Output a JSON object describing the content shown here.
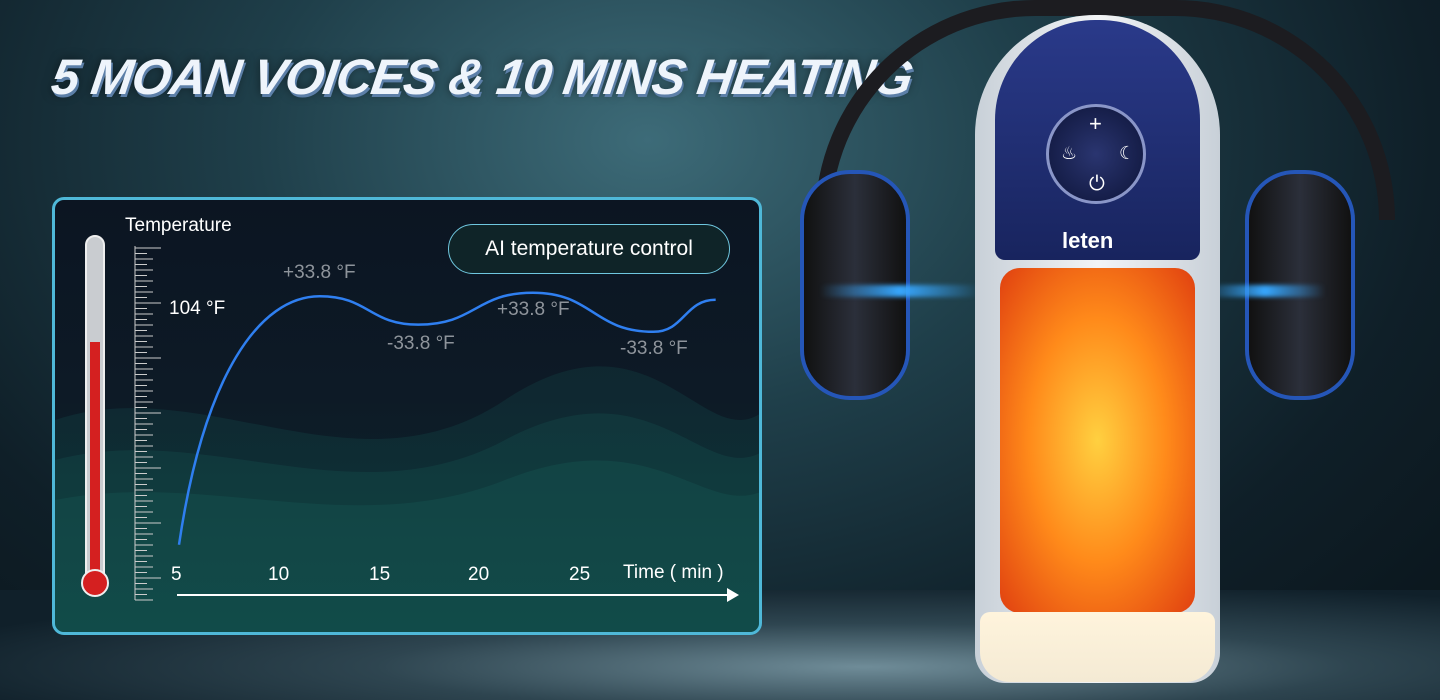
{
  "headline": "5 MOAN VOICES & 10 MINS HEATING",
  "brand": "leten",
  "device_icons": [
    "plus-icon",
    "flame-icon",
    "voice-face-icon",
    "power-icon"
  ],
  "colors": {
    "curve": "#2f7ff0",
    "panel_border": "#4fb8d8",
    "thermometer": "#d42020"
  },
  "chart_data": {
    "type": "line",
    "ylabel": "Temperature",
    "xlabel": "Time ( min )",
    "x_ticks": [
      "5",
      "10",
      "15",
      "20",
      "25"
    ],
    "y_marker": "104 °F",
    "badge": "AI temperature control",
    "annotations": [
      "+33.8 °F",
      "-33.8 °F",
      "+33.8 °F",
      "-33.8 °F"
    ],
    "thermometer_fill": 0.7,
    "series": [
      {
        "x": [
          5,
          12,
          16.9,
          22.6,
          28.6,
          31.7
        ],
        "y_level": [
          0.15,
          0.85,
          0.77,
          0.86,
          0.75,
          0.84
        ]
      }
    ],
    "grid": false
  }
}
